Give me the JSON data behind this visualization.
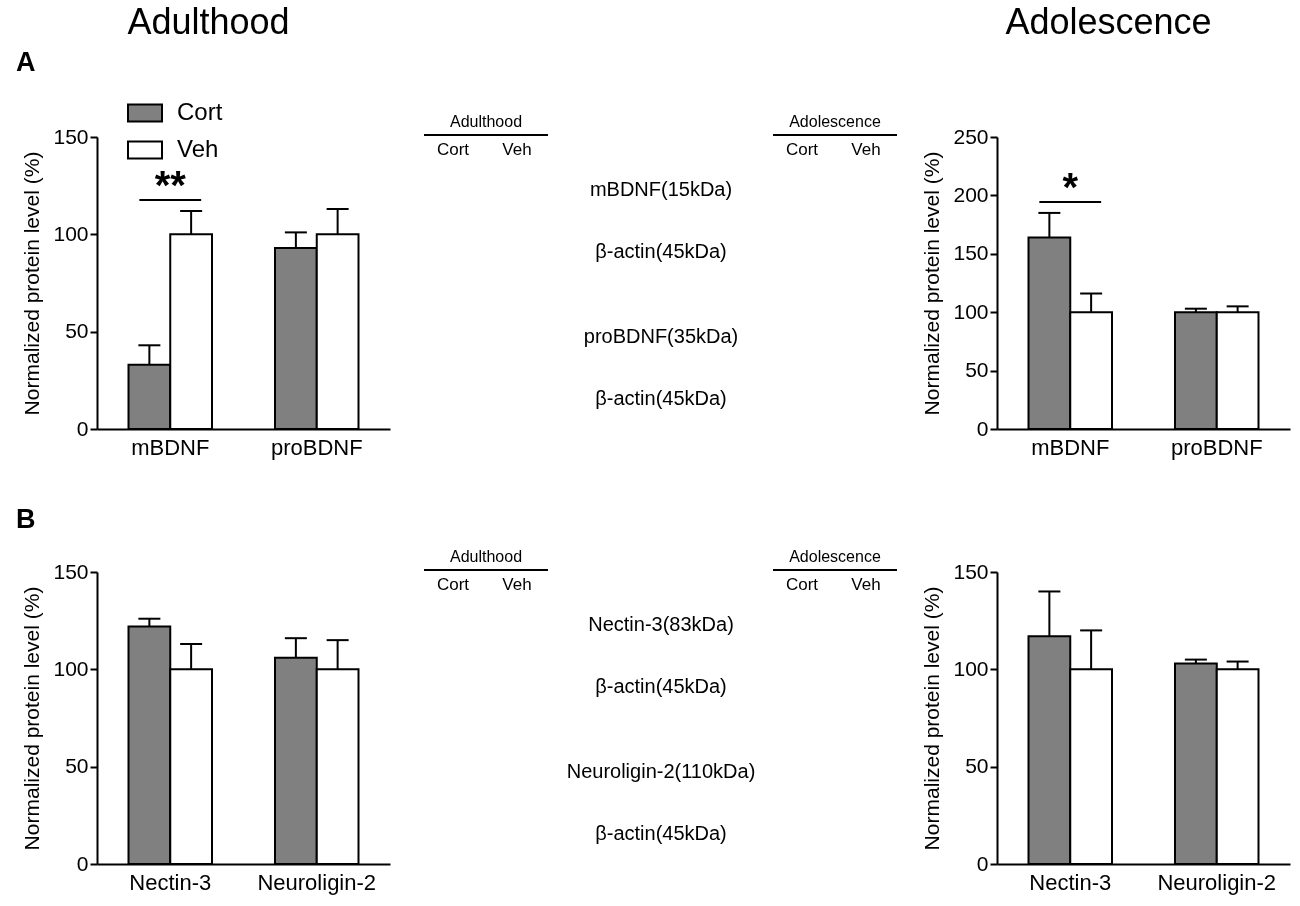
{
  "chart_data": [
    {
      "type": "bar",
      "title": "Adulthood",
      "subtitle": "A",
      "ylabel": "Normalized protein level (%)",
      "categories": [
        "mBDNF",
        "proBDNF"
      ],
      "series": [
        {
          "name": "Cort",
          "color": "#808080",
          "values": [
            33,
            93
          ],
          "errors": [
            [
              33,
              43
            ],
            [
              93,
              101
            ]
          ]
        },
        {
          "name": "Veh",
          "color": "#ffffff",
          "values": [
            100,
            100
          ],
          "errors": [
            [
              100,
              112
            ],
            [
              100,
              113
            ]
          ]
        }
      ],
      "ylim": [
        0,
        150
      ],
      "yticks": [
        0,
        50,
        100,
        150
      ],
      "legend": "top left",
      "annotations": [
        "**"
      ]
    },
    {
      "type": "other",
      "annotations": [
        "Adulthood",
        "Cort",
        "Veh",
        "Adolescence",
        "Cort",
        "Veh",
        "mBDNF(15kDa)",
        "β-actin(45kDa)",
        "proBDNF(35kDa)",
        "β-actin(45kDa)"
      ]
    },
    {
      "type": "bar",
      "title": "Adolescence",
      "ylabel": "Normalized protein level (%)",
      "categories": [
        "mBDNF",
        "proBDNF"
      ],
      "series": [
        {
          "color": "#808080",
          "values": [
            164,
            100
          ],
          "errors": [
            [
              164,
              185
            ],
            [
              100,
              103
            ]
          ]
        },
        {
          "color": "#ffffff",
          "values": [
            100,
            100
          ],
          "errors": [
            [
              100,
              116
            ],
            [
              100,
              105
            ]
          ]
        }
      ],
      "ylim": [
        0,
        250
      ],
      "yticks": [
        0,
        50,
        100,
        150,
        200,
        250
      ],
      "annotations": [
        "*"
      ]
    },
    {
      "type": "bar",
      "subtitle": "B",
      "ylabel": "Normalized protein level (%)",
      "categories": [
        "Nectin-3",
        "Neuroligin-2"
      ],
      "series": [
        {
          "color": "#808080",
          "values": [
            122,
            106
          ],
          "errors": [
            [
              122,
              126
            ],
            [
              106,
              116
            ]
          ]
        },
        {
          "color": "#ffffff",
          "values": [
            100,
            100
          ],
          "errors": [
            [
              100,
              113
            ],
            [
              100,
              115
            ]
          ]
        }
      ],
      "ylim": [
        0,
        150
      ],
      "yticks": [
        0,
        50,
        100,
        150
      ]
    },
    {
      "type": "other",
      "annotations": [
        "Adulthood",
        "Cort",
        "Veh",
        "Adolescence",
        "Cort",
        "Veh",
        "Nectin-3(83kDa)",
        "β-actin(45kDa)",
        "Neuroligin-2(110kDa)",
        "β-actin(45kDa)"
      ]
    },
    {
      "type": "bar",
      "ylabel": "Normalized protein level (%)",
      "categories": [
        "Nectin-3",
        "Neuroligin-2"
      ],
      "series": [
        {
          "color": "#808080",
          "values": [
            117,
            103
          ],
          "errors": [
            [
              117,
              140
            ],
            [
              103,
              105
            ]
          ]
        },
        {
          "color": "#ffffff",
          "values": [
            100,
            100
          ],
          "errors": [
            [
              100,
              120
            ],
            [
              100,
              104
            ]
          ]
        }
      ],
      "ylim": [
        0,
        150
      ],
      "yticks": [
        0,
        50,
        100,
        150
      ]
    }
  ]
}
